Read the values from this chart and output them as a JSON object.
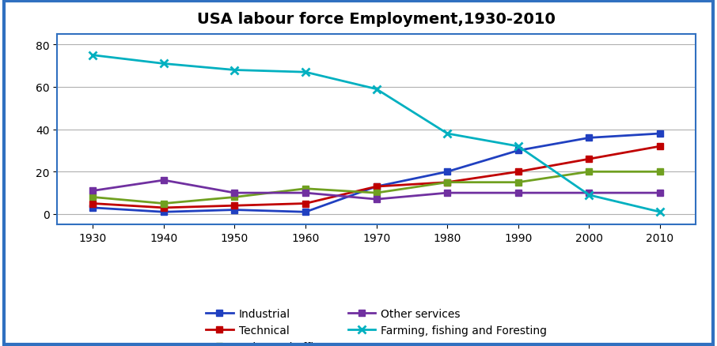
{
  "title": "USA labour force Employment,1930-2010",
  "years": [
    1930,
    1940,
    1950,
    1960,
    1970,
    1980,
    1990,
    2000,
    2010
  ],
  "series": {
    "Industrial": {
      "values": [
        3,
        1,
        2,
        1,
        13,
        20,
        30,
        36,
        38
      ],
      "color": "#2040C0",
      "marker": "s"
    },
    "Technical": {
      "values": [
        5,
        3,
        4,
        5,
        13,
        15,
        20,
        26,
        32
      ],
      "color": "#C00000",
      "marker": "s"
    },
    "Sales and office": {
      "values": [
        8,
        5,
        8,
        12,
        10,
        15,
        15,
        20,
        20
      ],
      "color": "#70A020",
      "marker": "s"
    },
    "Other services": {
      "values": [
        11,
        16,
        10,
        10,
        7,
        10,
        10,
        10,
        10
      ],
      "color": "#7030A0",
      "marker": "s"
    },
    "Farming, fishing and Foresting": {
      "values": [
        75,
        71,
        68,
        67,
        59,
        38,
        32,
        9,
        1
      ],
      "color": "#00B0C0",
      "marker": "x"
    }
  },
  "ylim": [
    -5,
    85
  ],
  "yticks": [
    0,
    20,
    40,
    60,
    80
  ],
  "xlim": [
    1925,
    2015
  ],
  "background_color": "#FFFFFF",
  "border_color": "#3070C0",
  "grid_color": "#B0B0B0"
}
